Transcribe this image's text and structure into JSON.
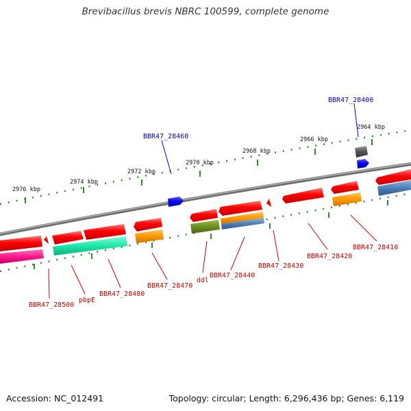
{
  "title": "Brevibacillus brevis NBRC 100599, complete genome",
  "footer": {
    "accession": "Accession: NC_012491",
    "stats": "Topology: circular; Length: 6,296,436 bp; Genes: 6,119"
  },
  "colors": {
    "backbone": "#8a8a8a",
    "tick": "#2e8b2e",
    "gene_red": "#ff0000",
    "label_red": "#cc0000",
    "label_blue": "#0000bb"
  },
  "scale_ticks": [
    {
      "label": "2976 kbp"
    },
    {
      "label": "2974 kbp"
    },
    {
      "label": "2972 kbp"
    },
    {
      "label": "2970 kbp"
    },
    {
      "label": "2968 kbp"
    },
    {
      "label": "2966 kbp"
    },
    {
      "label": "2964 kbp"
    }
  ],
  "gene_labels": [
    {
      "name": "BBR47_28400",
      "color": "blue"
    },
    {
      "name": "BBR47_28460",
      "color": "blue"
    },
    {
      "name": "BBR47_28410",
      "color": "red"
    },
    {
      "name": "BBR47_28420",
      "color": "red"
    },
    {
      "name": "BBR47_28430",
      "color": "red"
    },
    {
      "name": "BBR47_28440",
      "color": "red"
    },
    {
      "name": "ddl",
      "color": "red"
    },
    {
      "name": "BBR47_28470",
      "color": "red"
    },
    {
      "name": "BBR47_28480",
      "color": "red"
    },
    {
      "name": "pbpE",
      "color": "red"
    },
    {
      "name": "BBR47_28500",
      "color": "red"
    }
  ]
}
